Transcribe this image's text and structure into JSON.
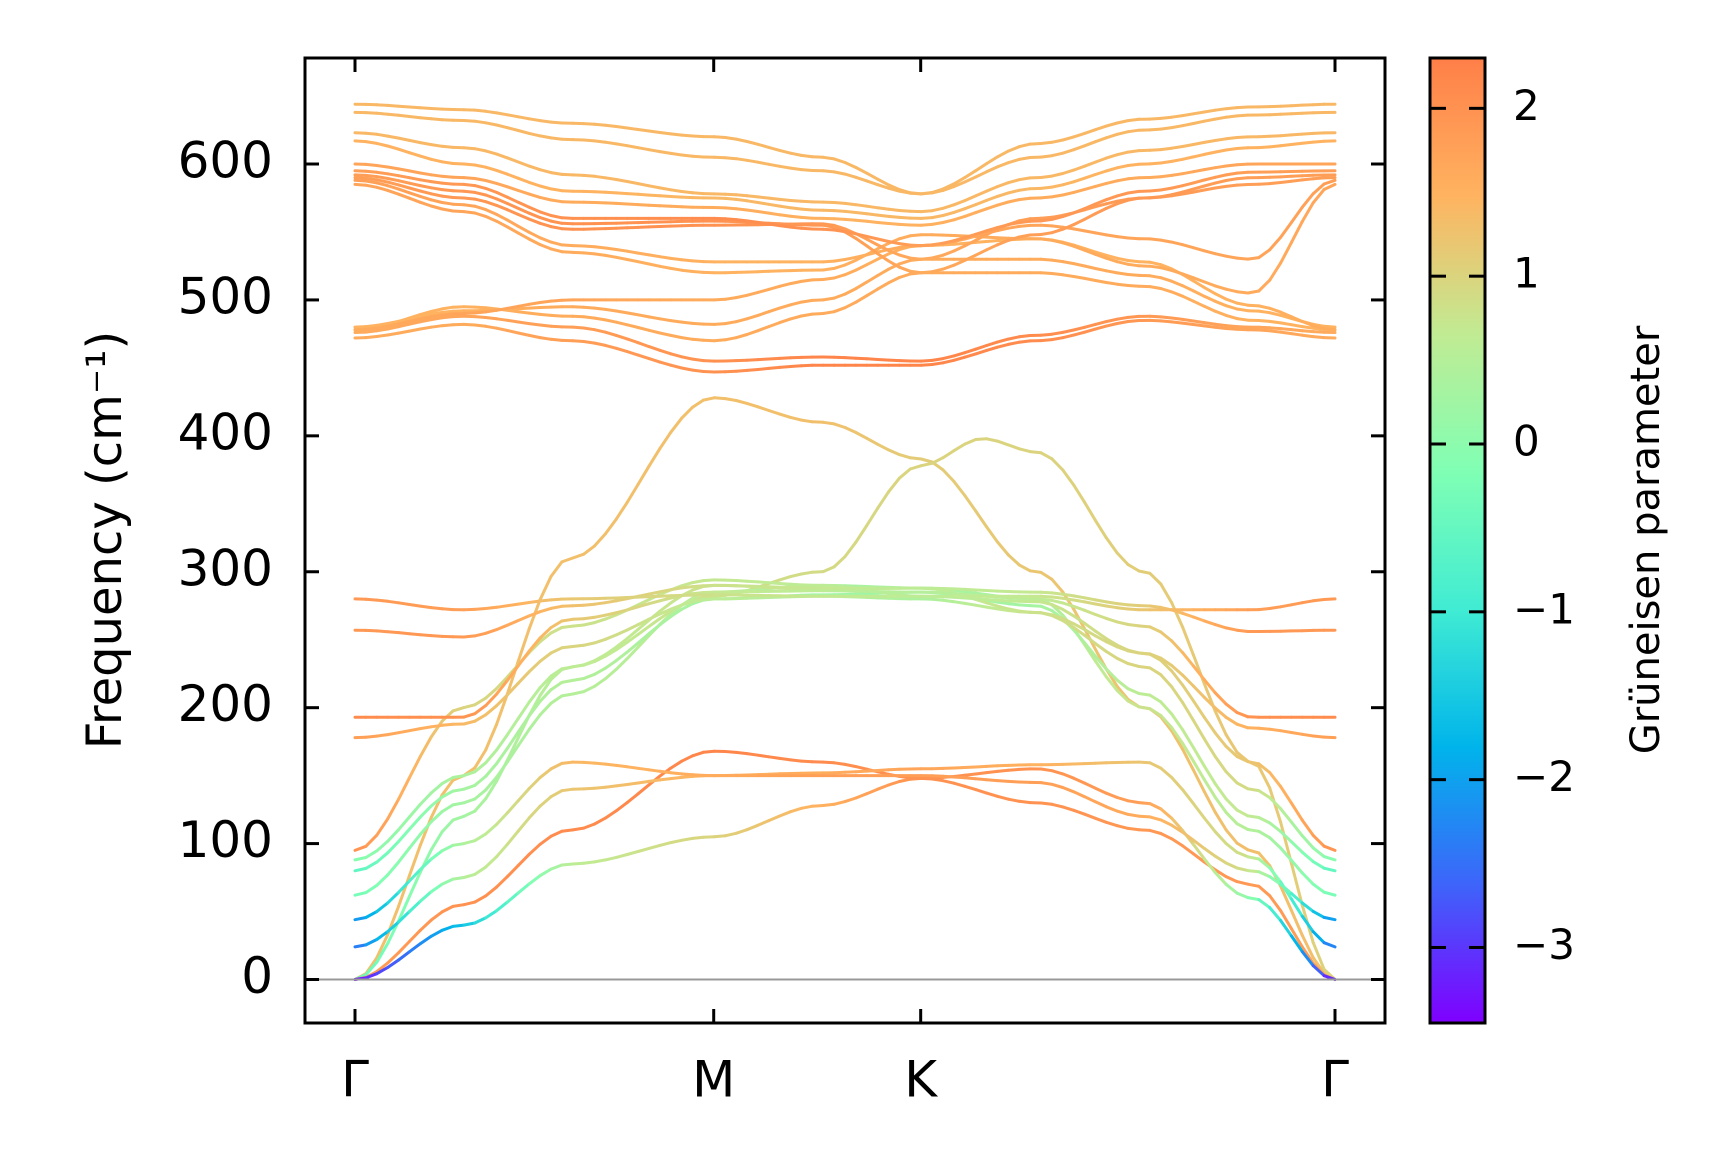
{
  "chart_data": {
    "type": "line",
    "title": "",
    "xlabel": "",
    "ylabel": "Frequency (cm⁻¹)",
    "ylim": [
      -32,
      678
    ],
    "yticks": [
      0,
      100,
      200,
      300,
      400,
      500,
      600
    ],
    "ytick_labels": [
      "0",
      "100",
      "200",
      "300",
      "400",
      "500",
      "600"
    ],
    "x_path": [
      {
        "label": "Γ",
        "pos": 0.0
      },
      {
        "label": "M",
        "pos": 1.0
      },
      {
        "label": "K",
        "pos": 1.577
      },
      {
        "label": "Γ",
        "pos": 2.732
      }
    ],
    "grid": false,
    "zero_line": true,
    "colorbar": {
      "label": "Grüneisen parameter",
      "min": -3.45,
      "max": 2.3,
      "ticks": [
        -3,
        -2,
        -1,
        0,
        1,
        2
      ],
      "tick_labels": [
        "−3",
        "−2",
        "−1",
        "0",
        "1",
        "2"
      ],
      "colormap": [
        "#7f00ff",
        "#3e64fa",
        "#00b4eb",
        "#40ecd3",
        "#80ffb4",
        "#c1eb93",
        "#ffb360",
        "#ff7f48"
      ]
    },
    "series": [
      {
        "x": [
          0,
          0.3,
          0.6,
          1.0,
          1.3,
          1.577,
          1.9,
          2.2,
          2.5,
          2.732
        ],
        "y": [
          0,
          150,
          310,
          428,
          410,
          383,
          300,
          200,
          95,
          0
        ],
        "gamma": [
          1.3,
          1.3,
          1.3,
          1.3,
          1.3,
          1.1,
          1.2,
          1.25,
          1.3,
          1.3
        ]
      },
      {
        "x": [
          0,
          0.3,
          0.6,
          1.0,
          1.3,
          1.577,
          1.75,
          1.9,
          2.2,
          2.5,
          2.732
        ],
        "y": [
          0,
          120,
          230,
          282,
          300,
          378,
          398,
          388,
          300,
          160,
          0
        ],
        "gamma": [
          -0.5,
          0.3,
          0.6,
          0.8,
          0.9,
          1.0,
          1.0,
          1.0,
          1.1,
          1.2,
          1.0
        ]
      },
      {
        "x": [
          0,
          0.3,
          0.6,
          1.0,
          1.3,
          1.577,
          1.9,
          2.2,
          2.5,
          2.732
        ],
        "y": [
          0,
          55,
          110,
          168,
          160,
          148,
          130,
          110,
          70,
          0
        ],
        "gamma": [
          1.8,
          2.0,
          2.1,
          2.2,
          2.1,
          2.0,
          2.0,
          1.9,
          1.9,
          1.8
        ]
      },
      {
        "x": [
          0,
          0.3,
          0.6,
          1.0,
          1.3,
          1.577,
          1.9,
          2.2,
          2.5,
          2.732
        ],
        "y": [
          0,
          40,
          85,
          105,
          128,
          148,
          155,
          130,
          60,
          0
        ],
        "gamma": [
          -3.3,
          -1.6,
          0.6,
          1.0,
          1.5,
          2.0,
          2.0,
          1.8,
          0.0,
          -3.3
        ]
      },
      {
        "x": [
          0,
          0.3,
          0.6,
          1.0,
          1.3,
          1.577,
          1.9,
          2.2,
          2.5,
          2.732
        ],
        "y": [
          24,
          75,
          140,
          150,
          152,
          155,
          158,
          160,
          90,
          24
        ],
        "gamma": [
          -2.5,
          0.5,
          1.2,
          1.5,
          1.6,
          1.7,
          1.5,
          1.2,
          0.8,
          -2.5
        ]
      },
      {
        "x": [
          0,
          0.3,
          0.6,
          1.0,
          1.3,
          1.577,
          1.9,
          2.2,
          2.5,
          2.732
        ],
        "y": [
          44,
          100,
          160,
          150,
          150,
          150,
          145,
          120,
          80,
          44
        ],
        "gamma": [
          -2.2,
          0.4,
          1.4,
          1.6,
          1.8,
          1.8,
          1.8,
          1.6,
          0.8,
          -2.2
        ]
      },
      {
        "x": [
          0,
          0.3,
          0.6,
          1.0,
          1.3,
          1.577,
          1.9,
          2.2,
          2.5,
          2.732
        ],
        "y": [
          62,
          130,
          210,
          285,
          290,
          288,
          280,
          200,
          110,
          62
        ],
        "gamma": [
          -0.3,
          0.3,
          0.5,
          0.6,
          0.4,
          0.3,
          0.4,
          0.8,
          0.5,
          -0.3
        ]
      },
      {
        "x": [
          0,
          0.3,
          0.6,
          1.0,
          1.3,
          1.577,
          1.9,
          2.2,
          2.5,
          2.732
        ],
        "y": [
          80,
          140,
          220,
          280,
          283,
          285,
          275,
          210,
          120,
          80
        ],
        "gamma": [
          -0.6,
          0.3,
          0.5,
          0.3,
          0.2,
          0.2,
          0.3,
          0.6,
          0.7,
          -0.6
        ]
      },
      {
        "x": [
          0,
          0.3,
          0.6,
          1.0,
          1.3,
          1.577,
          1.9,
          2.2,
          2.5,
          2.732
        ],
        "y": [
          88,
          150,
          230,
          290,
          287,
          288,
          270,
          230,
          140,
          88
        ],
        "gamma": [
          -0.1,
          0.4,
          0.6,
          0.8,
          0.7,
          0.6,
          0.8,
          1.0,
          0.9,
          -0.1
        ]
      },
      {
        "x": [
          0,
          0.3,
          0.6,
          1.0,
          1.3,
          1.577,
          1.9,
          2.2,
          2.5,
          2.732
        ],
        "y": [
          95,
          200,
          260,
          294,
          290,
          282,
          278,
          240,
          160,
          95
        ],
        "gamma": [
          2.0,
          1.0,
          0.8,
          0.7,
          0.6,
          0.5,
          0.7,
          1.0,
          1.2,
          2.0
        ]
      },
      {
        "x": [
          0,
          0.3,
          0.6,
          1.0,
          1.3,
          1.577,
          1.9,
          2.2,
          2.5,
          2.732
        ],
        "y": [
          178,
          188,
          245,
          280,
          282,
          280,
          270,
          240,
          185,
          178
        ],
        "gamma": [
          1.8,
          1.4,
          1.0,
          0.6,
          0.5,
          0.4,
          0.8,
          1.0,
          1.5,
          1.8
        ]
      },
      {
        "x": [
          0,
          0.3,
          0.6,
          1.0,
          1.3,
          1.577,
          1.9,
          2.2,
          2.5,
          2.732
        ],
        "y": [
          193,
          193,
          265,
          285,
          286,
          285,
          280,
          260,
          193,
          193
        ],
        "gamma": [
          2.1,
          2.0,
          1.2,
          0.7,
          0.6,
          0.5,
          0.6,
          1.0,
          2.0,
          2.1
        ]
      },
      {
        "x": [
          0,
          0.3,
          0.6,
          1.0,
          1.3,
          1.577,
          1.9,
          2.2,
          2.5,
          2.732
        ],
        "y": [
          257,
          252,
          275,
          290,
          288,
          288,
          285,
          275,
          256,
          257
        ],
        "gamma": [
          1.9,
          1.9,
          1.3,
          0.8,
          0.7,
          0.6,
          0.7,
          1.1,
          1.9,
          1.9
        ]
      },
      {
        "x": [
          0,
          0.3,
          0.6,
          1.0,
          1.3,
          1.577,
          1.9,
          2.2,
          2.5,
          2.732
        ],
        "y": [
          280,
          272,
          280,
          283,
          282,
          282,
          282,
          272,
          272,
          280
        ],
        "gamma": [
          1.9,
          1.8,
          1.2,
          0.8,
          0.7,
          0.6,
          0.7,
          1.2,
          1.8,
          1.9
        ]
      },
      {
        "x": [
          0,
          0.3,
          0.6,
          1.0,
          1.3,
          1.577,
          1.9,
          2.2,
          2.5,
          2.732
        ],
        "y": [
          472,
          482,
          470,
          447,
          452,
          452,
          470,
          485,
          478,
          472
        ],
        "gamma": [
          1.6,
          1.6,
          1.8,
          2.0,
          2.2,
          2.2,
          2.1,
          1.9,
          1.7,
          1.6
        ]
      },
      {
        "x": [
          0,
          0.3,
          0.6,
          1.0,
          1.3,
          1.577,
          1.9,
          2.2,
          2.5,
          2.732
        ],
        "y": [
          476,
          488,
          480,
          455,
          458,
          455,
          474,
          488,
          480,
          476
        ],
        "gamma": [
          1.6,
          1.7,
          1.8,
          2.0,
          2.2,
          2.2,
          2.1,
          1.9,
          1.7,
          1.6
        ]
      },
      {
        "x": [
          0,
          0.3,
          0.6,
          1.0,
          1.3,
          1.577,
          1.9,
          2.2,
          2.5,
          2.732
        ],
        "y": [
          478,
          495,
          488,
          470,
          490,
          520,
          520,
          510,
          485,
          478
        ],
        "gamma": [
          1.5,
          1.5,
          1.6,
          1.6,
          1.6,
          1.6,
          1.6,
          1.6,
          1.5,
          1.5
        ]
      },
      {
        "x": [
          0,
          0.3,
          0.6,
          1.0,
          1.3,
          1.577,
          1.9,
          2.2,
          2.5,
          2.732
        ],
        "y": [
          480,
          492,
          495,
          482,
          500,
          530,
          530,
          518,
          492,
          480
        ],
        "gamma": [
          1.5,
          1.5,
          1.6,
          1.6,
          1.6,
          1.6,
          1.6,
          1.6,
          1.5,
          1.5
        ]
      },
      {
        "x": [
          0,
          0.3,
          0.6,
          1.0,
          1.3,
          1.577,
          1.9,
          2.2,
          2.5,
          2.732
        ],
        "y": [
          478,
          490,
          500,
          500,
          515,
          540,
          545,
          528,
          496,
          478
        ],
        "gamma": [
          1.6,
          1.7,
          1.7,
          1.6,
          1.6,
          1.5,
          1.5,
          1.5,
          1.5,
          1.6
        ]
      },
      {
        "x": [
          0,
          0.3,
          0.6,
          1.0,
          1.3,
          1.577,
          1.9,
          2.2,
          2.5,
          2.732
        ],
        "y": [
          585,
          565,
          535,
          520,
          522,
          548,
          545,
          525,
          505,
          585
        ],
        "gamma": [
          1.7,
          1.7,
          1.6,
          1.5,
          1.5,
          1.6,
          1.6,
          1.6,
          1.6,
          1.7
        ]
      },
      {
        "x": [
          0,
          0.3,
          0.6,
          1.0,
          1.3,
          1.577,
          1.9,
          2.2,
          2.5,
          2.732
        ],
        "y": [
          588,
          570,
          540,
          528,
          528,
          540,
          555,
          545,
          530,
          588
        ],
        "gamma": [
          1.8,
          1.7,
          1.6,
          1.5,
          1.5,
          1.6,
          1.7,
          1.7,
          1.7,
          1.8
        ]
      },
      {
        "x": [
          0,
          0.3,
          0.6,
          1.0,
          1.3,
          1.577,
          1.9,
          2.2,
          2.5,
          2.732
        ],
        "y": [
          590,
          575,
          552,
          555,
          556,
          530,
          560,
          575,
          585,
          590
        ],
        "gamma": [
          1.8,
          1.9,
          2.0,
          2.0,
          1.9,
          1.6,
          1.8,
          1.9,
          1.8,
          1.8
        ]
      },
      {
        "x": [
          0,
          0.3,
          0.6,
          1.0,
          1.3,
          1.577,
          1.9,
          2.2,
          2.5,
          2.732
        ],
        "y": [
          592,
          580,
          556,
          558,
          555,
          520,
          548,
          575,
          590,
          592
        ],
        "gamma": [
          1.8,
          1.9,
          2.0,
          2.0,
          1.9,
          1.6,
          1.8,
          1.9,
          1.8,
          1.8
        ]
      },
      {
        "x": [
          0,
          0.3,
          0.6,
          1.0,
          1.3,
          1.577,
          1.9,
          2.2,
          2.5,
          2.732
        ],
        "y": [
          595,
          585,
          560,
          560,
          552,
          540,
          558,
          580,
          594,
          595
        ],
        "gamma": [
          1.8,
          1.9,
          2.0,
          2.1,
          2.0,
          1.8,
          1.9,
          1.9,
          1.8,
          1.8
        ]
      },
      {
        "x": [
          0,
          0.3,
          0.6,
          1.0,
          1.3,
          1.577,
          1.9,
          2.2,
          2.5,
          2.732
        ],
        "y": [
          600,
          590,
          572,
          568,
          560,
          555,
          575,
          590,
          600,
          600
        ],
        "gamma": [
          1.7,
          1.7,
          1.6,
          1.6,
          1.5,
          1.5,
          1.6,
          1.6,
          1.7,
          1.7
        ]
      },
      {
        "x": [
          0,
          0.3,
          0.6,
          1.0,
          1.3,
          1.577,
          1.9,
          2.2,
          2.5,
          2.732
        ],
        "y": [
          617,
          600,
          580,
          575,
          566,
          560,
          582,
          600,
          612,
          617
        ],
        "gamma": [
          1.5,
          1.5,
          1.5,
          1.4,
          1.4,
          1.4,
          1.4,
          1.5,
          1.5,
          1.5
        ]
      },
      {
        "x": [
          0,
          0.3,
          0.6,
          1.0,
          1.3,
          1.577,
          1.9,
          2.2,
          2.5,
          2.732
        ],
        "y": [
          623,
          612,
          592,
          578,
          572,
          565,
          590,
          610,
          620,
          623
        ],
        "gamma": [
          1.4,
          1.4,
          1.4,
          1.4,
          1.4,
          1.4,
          1.4,
          1.4,
          1.4,
          1.4
        ]
      },
      {
        "x": [
          0,
          0.3,
          0.6,
          1.0,
          1.3,
          1.577,
          1.9,
          2.2,
          2.5,
          2.732
        ],
        "y": [
          638,
          632,
          618,
          605,
          595,
          578,
          605,
          625,
          636,
          638
        ],
        "gamma": [
          1.4,
          1.4,
          1.4,
          1.4,
          1.4,
          1.4,
          1.4,
          1.4,
          1.4,
          1.4
        ]
      },
      {
        "x": [
          0,
          0.3,
          0.6,
          1.0,
          1.3,
          1.577,
          1.9,
          2.2,
          2.5,
          2.732
        ],
        "y": [
          644,
          640,
          630,
          620,
          605,
          578,
          615,
          633,
          642,
          644
        ],
        "gamma": [
          1.4,
          1.4,
          1.4,
          1.4,
          1.4,
          1.4,
          1.4,
          1.4,
          1.4,
          1.4
        ]
      }
    ]
  }
}
